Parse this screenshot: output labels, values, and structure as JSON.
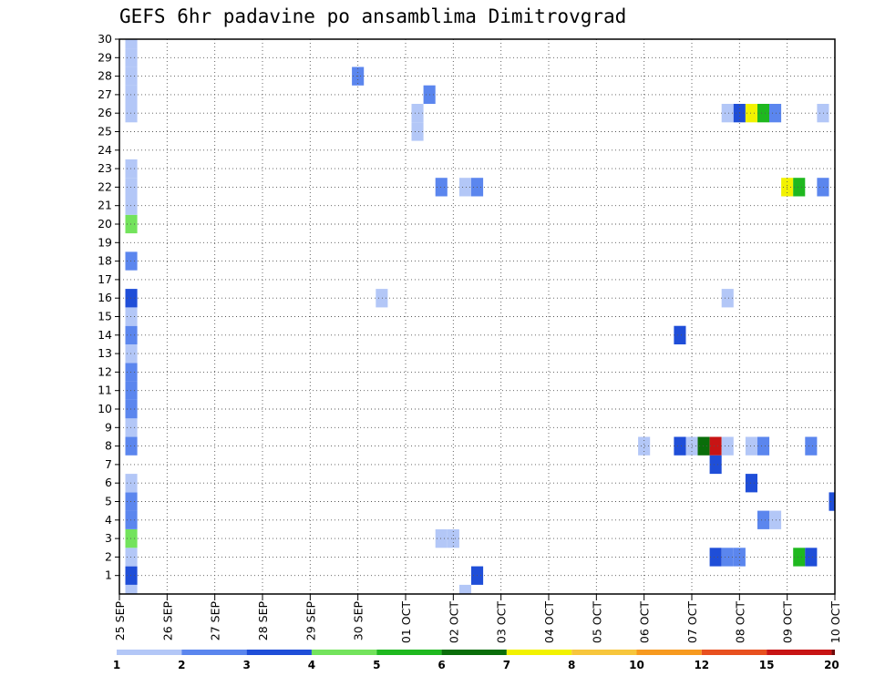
{
  "chart_data": {
    "type": "heatmap",
    "title": "GEFS 6hr padavine po ansamblima Dimitrovgrad",
    "x_tick_labels": [
      "25 SEP",
      "26 SEP",
      "27 SEP",
      "28 SEP",
      "29 SEP",
      "30 SEP",
      "01 OCT",
      "02 OCT",
      "03 OCT",
      "04 OCT",
      "05 OCT",
      "06 OCT",
      "07 OCT",
      "08 OCT",
      "09 OCT",
      "10 OCT"
    ],
    "y_tick_labels": [
      "1",
      "2",
      "3",
      "4",
      "5",
      "6",
      "7",
      "8",
      "9",
      "10",
      "11",
      "12",
      "13",
      "14",
      "15",
      "16",
      "17",
      "18",
      "19",
      "20",
      "21",
      "22",
      "23",
      "24",
      "25",
      "26",
      "27",
      "28",
      "29",
      "30"
    ],
    "xlim_days": [
      0,
      15
    ],
    "ylim_members": [
      0,
      30
    ],
    "time_step_hours": 6,
    "grid": true,
    "legend": {
      "placement": "bottom",
      "thresholds": [
        "1",
        "2",
        "3",
        "4",
        "5",
        "6",
        "7",
        "8",
        "10",
        "12",
        "15",
        "20"
      ],
      "colors": [
        "#b3c7f7",
        "#5b86ee",
        "#1f4ed8",
        "#73e35c",
        "#1fb81f",
        "#0a6e0a",
        "#f2f200",
        "#f7c63c",
        "#f79a1f",
        "#e8501f",
        "#c81414",
        "#6e0a0a"
      ]
    },
    "cells": [
      {
        "day": 0.25,
        "member": 0,
        "class": 0
      },
      {
        "day": 0.25,
        "member": 1,
        "class": 2
      },
      {
        "day": 0.25,
        "member": 2,
        "class": 0
      },
      {
        "day": 0.25,
        "member": 3,
        "class": 3
      },
      {
        "day": 0.25,
        "member": 4,
        "class": 1
      },
      {
        "day": 0.25,
        "member": 5,
        "class": 1
      },
      {
        "day": 0.25,
        "member": 6,
        "class": 0
      },
      {
        "day": 0.25,
        "member": 8,
        "class": 1
      },
      {
        "day": 0.25,
        "member": 9,
        "class": 0
      },
      {
        "day": 0.25,
        "member": 10,
        "class": 1
      },
      {
        "day": 0.25,
        "member": 11,
        "class": 1
      },
      {
        "day": 0.25,
        "member": 12,
        "class": 1
      },
      {
        "day": 0.25,
        "member": 13,
        "class": 0
      },
      {
        "day": 0.25,
        "member": 14,
        "class": 1
      },
      {
        "day": 0.25,
        "member": 15,
        "class": 0
      },
      {
        "day": 0.25,
        "member": 16,
        "class": 2
      },
      {
        "day": 0.25,
        "member": 18,
        "class": 1
      },
      {
        "day": 0.25,
        "member": 20,
        "class": 3
      },
      {
        "day": 0.25,
        "member": 21,
        "class": 0
      },
      {
        "day": 0.25,
        "member": 22,
        "class": 0
      },
      {
        "day": 0.25,
        "member": 23,
        "class": 0
      },
      {
        "day": 0.25,
        "member": 26,
        "class": 0
      },
      {
        "day": 0.25,
        "member": 27,
        "class": 0
      },
      {
        "day": 0.25,
        "member": 28,
        "class": 0
      },
      {
        "day": 0.25,
        "member": 29,
        "class": 0
      },
      {
        "day": 0.25,
        "member": 30,
        "class": 0
      },
      {
        "day": 5.0,
        "member": 28,
        "class": 1
      },
      {
        "day": 5.5,
        "member": 16,
        "class": 0
      },
      {
        "day": 6.25,
        "member": 25,
        "class": 0
      },
      {
        "day": 6.25,
        "member": 26,
        "class": 0
      },
      {
        "day": 6.5,
        "member": 27,
        "class": 1
      },
      {
        "day": 6.75,
        "member": 22,
        "class": 1
      },
      {
        "day": 6.75,
        "member": 3,
        "class": 0
      },
      {
        "day": 7.0,
        "member": 3,
        "class": 0
      },
      {
        "day": 7.25,
        "member": 22,
        "class": 0
      },
      {
        "day": 7.25,
        "member": 0,
        "class": 0
      },
      {
        "day": 7.5,
        "member": 22,
        "class": 1
      },
      {
        "day": 7.5,
        "member": 1,
        "class": 2
      },
      {
        "day": 11.0,
        "member": 8,
        "class": 0
      },
      {
        "day": 11.75,
        "member": 8,
        "class": 2
      },
      {
        "day": 11.75,
        "member": 14,
        "class": 2
      },
      {
        "day": 12.0,
        "member": 8,
        "class": 0
      },
      {
        "day": 12.25,
        "member": 8,
        "class": 5
      },
      {
        "day": 12.5,
        "member": 8,
        "class": 10
      },
      {
        "day": 12.5,
        "member": 7,
        "class": 2
      },
      {
        "day": 12.5,
        "member": 2,
        "class": 2
      },
      {
        "day": 12.75,
        "member": 8,
        "class": 0
      },
      {
        "day": 12.75,
        "member": 16,
        "class": 0
      },
      {
        "day": 12.75,
        "member": 2,
        "class": 1
      },
      {
        "day": 13.0,
        "member": 2,
        "class": 1
      },
      {
        "day": 12.75,
        "member": 26,
        "class": 0
      },
      {
        "day": 13.0,
        "member": 26,
        "class": 2
      },
      {
        "day": 13.25,
        "member": 26,
        "class": 6
      },
      {
        "day": 13.5,
        "member": 26,
        "class": 4
      },
      {
        "day": 13.75,
        "member": 26,
        "class": 1
      },
      {
        "day": 13.25,
        "member": 8,
        "class": 0
      },
      {
        "day": 13.5,
        "member": 8,
        "class": 1
      },
      {
        "day": 13.25,
        "member": 6,
        "class": 2
      },
      {
        "day": 13.5,
        "member": 4,
        "class": 1
      },
      {
        "day": 13.75,
        "member": 4,
        "class": 0
      },
      {
        "day": 14.0,
        "member": 22,
        "class": 6
      },
      {
        "day": 14.25,
        "member": 22,
        "class": 4
      },
      {
        "day": 14.25,
        "member": 2,
        "class": 4
      },
      {
        "day": 14.5,
        "member": 2,
        "class": 2
      },
      {
        "day": 14.5,
        "member": 8,
        "class": 1
      },
      {
        "day": 14.75,
        "member": 26,
        "class": 0
      },
      {
        "day": 14.75,
        "member": 22,
        "class": 1
      },
      {
        "day": 15.0,
        "member": 5,
        "class": 2
      }
    ]
  }
}
